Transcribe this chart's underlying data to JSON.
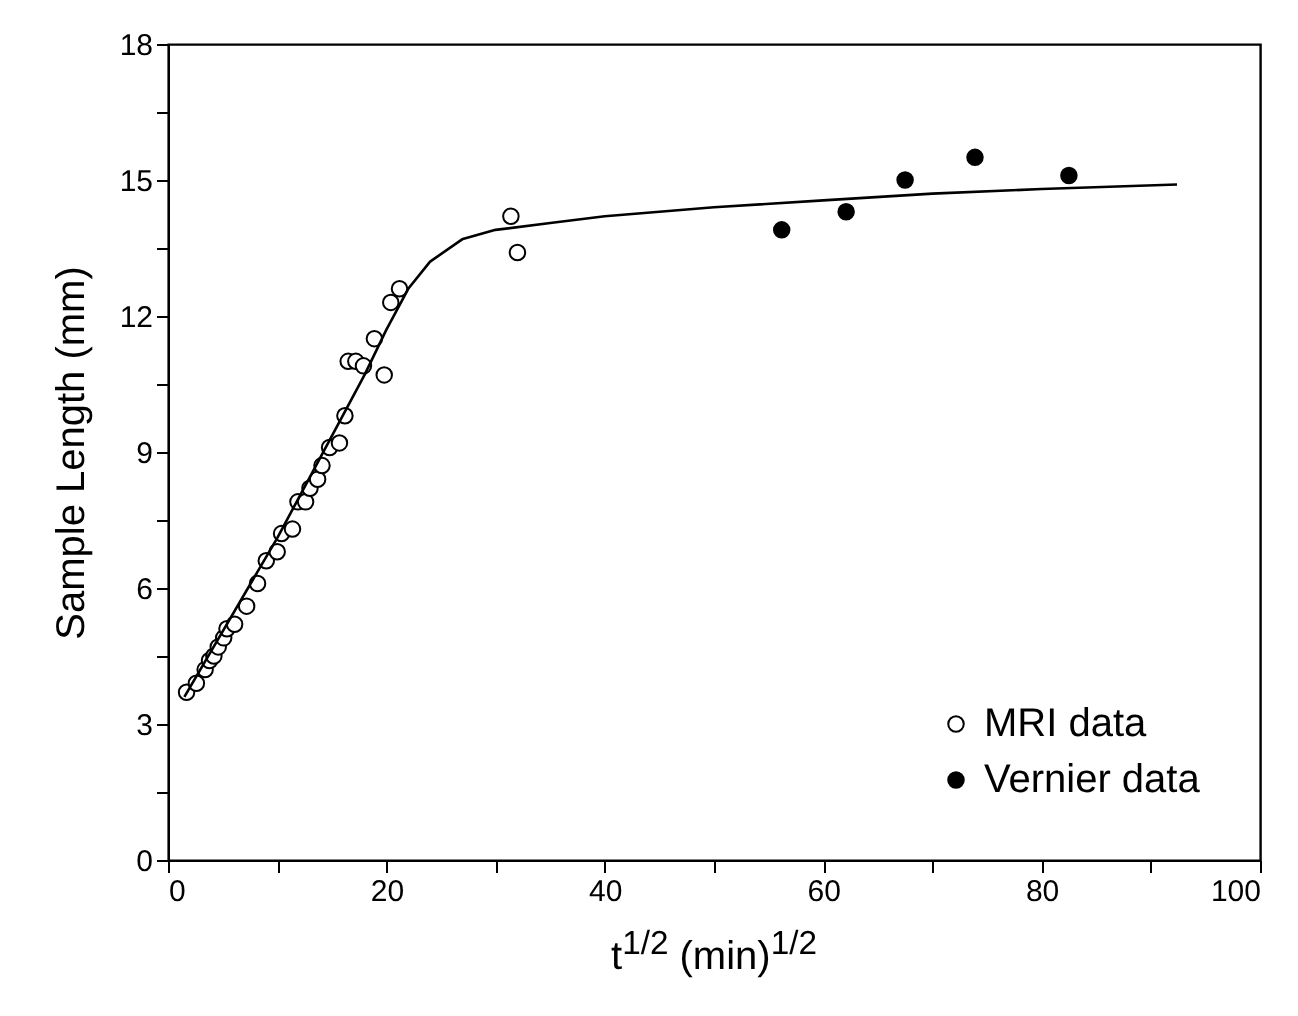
{
  "chart_data": {
    "type": "scatter",
    "xlabel": "t$^{1/2}$ (min)$^{1/2}$",
    "ylabel": "Sample Length (mm)",
    "xlim": [
      0,
      100
    ],
    "ylim": [
      0,
      18
    ],
    "xticks": [
      0,
      {
        "value": 10,
        "label": null
      },
      20,
      {
        "value": 30,
        "label": null
      },
      40,
      {
        "value": 50,
        "label": null
      },
      60,
      {
        "value": 70,
        "label": null
      },
      80,
      {
        "value": 90,
        "label": null
      },
      100
    ],
    "yticks": [
      0,
      {
        "value": 1.5,
        "label": null
      },
      3,
      {
        "value": 4.5,
        "label": null
      },
      6,
      {
        "value": 7.5,
        "label": null
      },
      9,
      {
        "value": 10.5,
        "label": null
      },
      12,
      {
        "value": 13.5,
        "label": null
      },
      15,
      {
        "value": 16.5,
        "label": null
      },
      18
    ],
    "grid": false,
    "legend": "bottom right",
    "marker": "circle",
    "series": [
      {
        "name": "MRI data",
        "color": "#ffffff",
        "x": [
          1.7,
          2.6,
          3.4,
          3.8,
          4.2,
          4.6,
          5.1,
          5.4,
          6.1,
          7.2,
          8.2,
          9.0,
          10.0,
          10.4,
          11.4,
          11.9,
          12.6,
          13.0,
          13.7,
          14.1,
          14.8,
          15.7,
          16.2,
          16.5,
          17.2,
          17.9,
          18.9,
          19.8,
          20.4,
          21.2,
          31.4,
          32.0
        ],
        "values": [
          3.7,
          3.9,
          4.2,
          4.4,
          4.5,
          4.7,
          4.9,
          5.1,
          5.2,
          5.6,
          6.1,
          6.6,
          6.8,
          7.2,
          7.3,
          7.9,
          7.9,
          8.2,
          8.4,
          8.7,
          9.1,
          9.2,
          9.8,
          11.0,
          11.0,
          10.9,
          11.5,
          10.7,
          12.3,
          12.6,
          14.2,
          13.4
        ]
      },
      {
        "name": "Vernier data",
        "color": "#000000",
        "x": [
          56.2,
          62.1,
          67.5,
          73.9,
          82.5
        ],
        "values": [
          13.9,
          14.3,
          15.0,
          15.5,
          15.1
        ]
      },
      {
        "type": "line",
        "color": "#000000",
        "marker": "none",
        "x": [
          1.5,
          10,
          18,
          20,
          22,
          24,
          27,
          30,
          35,
          40,
          50,
          60,
          70,
          80,
          92.4
        ],
        "values": [
          3.6,
          7.1,
          10.7,
          11.7,
          12.6,
          13.2,
          13.7,
          13.9,
          14.05,
          14.2,
          14.4,
          14.55,
          14.7,
          14.8,
          14.9
        ]
      }
    ]
  }
}
